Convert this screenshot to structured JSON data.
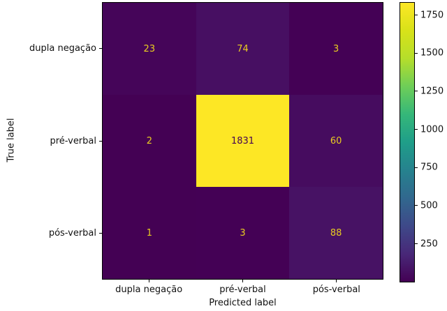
{
  "figure": {
    "background": "#ffffff",
    "spine_color": "#000000",
    "text_color": "#111111"
  },
  "chart_data": {
    "type": "heatmap",
    "title": "",
    "xlabel": "Predicted label",
    "ylabel": "True label",
    "x_categories": [
      "dupla negação",
      "pré-verbal",
      "pós-verbal"
    ],
    "y_categories": [
      "dupla negação",
      "pré-verbal",
      "pós-verbal"
    ],
    "matrix": [
      [
        23,
        74,
        3
      ],
      [
        2,
        1831,
        60
      ],
      [
        1,
        3,
        88
      ]
    ],
    "vmin": 1,
    "vmax": 1831,
    "colormap": "viridis",
    "grid": false,
    "cell_colors": [
      [
        "#450559",
        "#470f62",
        "#440155"
      ],
      [
        "#440154",
        "#fde725",
        "#460c5f"
      ],
      [
        "#440154",
        "#440155",
        "#471264"
      ]
    ],
    "cell_text_colors": [
      [
        "#eace20",
        "#eace20",
        "#eace20"
      ],
      [
        "#eace20",
        "#440154",
        "#eace20"
      ],
      [
        "#eace20",
        "#eace20",
        "#eace20"
      ]
    ],
    "colorbar": {
      "position": "right",
      "ticks": [
        1750,
        1500,
        1250,
        1000,
        750,
        500,
        250
      ],
      "gradient_top_to_bottom": [
        "#fde725",
        "#d8e219",
        "#b5de2b",
        "#6ece58",
        "#35b779",
        "#1f9e89",
        "#26828e",
        "#31688e",
        "#3e4989",
        "#482878",
        "#440154"
      ]
    }
  }
}
